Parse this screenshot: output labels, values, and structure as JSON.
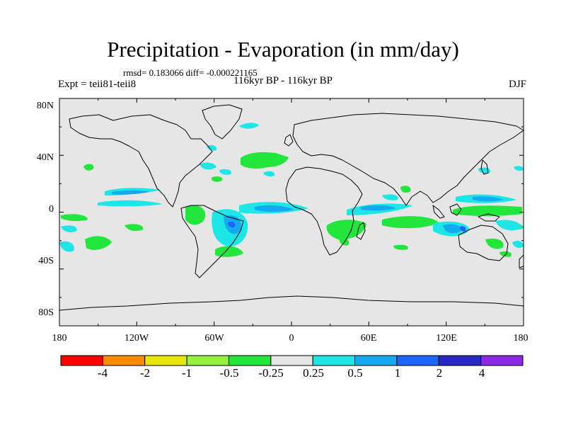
{
  "title": "Precipitation - Evaporation (in mm/day)",
  "stats": "rmsd= 0.183066 diff= -0.000221165",
  "experiment": "Expt = teii81-teii8",
  "period": "116kyr BP - 116kyr BP",
  "season": "DJF",
  "lat_ticks": [
    "80N",
    "40N",
    "0",
    "40S",
    "80S"
  ],
  "lon_ticks": [
    "180",
    "120W",
    "60W",
    "0",
    "60E",
    "120E",
    "180"
  ],
  "colorbar": {
    "labels": [
      "-4",
      "-2",
      "-1",
      "-0.5",
      "-0.25",
      "0.25",
      "0.5",
      "1",
      "2",
      "4"
    ],
    "colors": [
      "#ff0000",
      "#ff8c00",
      "#e6e60a",
      "#96f03c",
      "#22e63c",
      "#e6e6e6",
      "#1ee6e6",
      "#14aaf0",
      "#1e64ff",
      "#2828c8",
      "#8c28e6"
    ]
  },
  "colors": {
    "background": "#e6e6e6",
    "coastline": "#000000"
  }
}
